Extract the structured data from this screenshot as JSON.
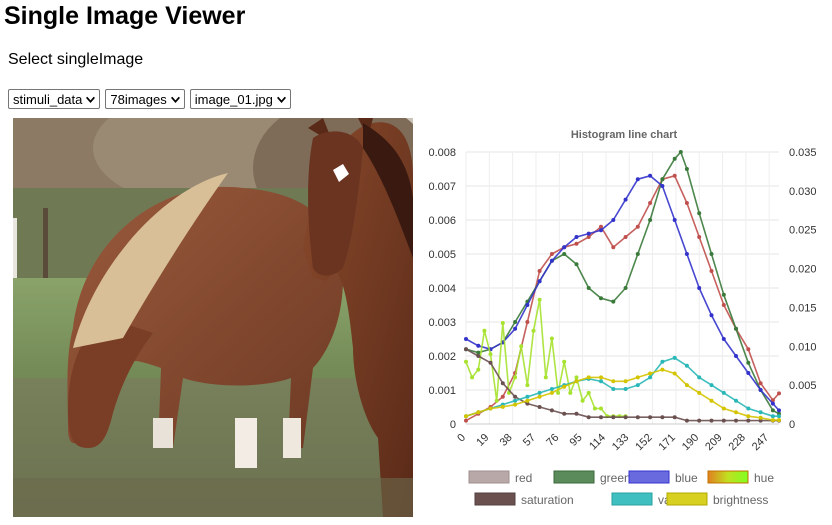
{
  "page": {
    "title": "Single Image Viewer",
    "prompt": "Select singleImage"
  },
  "selects": [
    {
      "name": "dataset-select",
      "value": "stimuli_data"
    },
    {
      "name": "image-count-select",
      "value": "78images"
    },
    {
      "name": "image-file-select",
      "value": "image_01.jpg"
    }
  ],
  "photo": {
    "subject": "two horses grazing on a pasture"
  },
  "chart_data": {
    "type": "line",
    "title": "Histogram line chart",
    "xlabel": "",
    "ylabel": "",
    "x_ticks": [
      "0",
      "19",
      "38",
      "57",
      "76",
      "95",
      "114",
      "133",
      "152",
      "171",
      "190",
      "209",
      "228",
      "247"
    ],
    "ylim_left": [
      0,
      0.008
    ],
    "yticks_left": [
      "0",
      "0.001",
      "0.002",
      "0.003",
      "0.004",
      "0.005",
      "0.006",
      "0.007",
      "0.008"
    ],
    "ylim_right": [
      0,
      0.035
    ],
    "yticks_right": [
      "0",
      "0.005",
      "0.010",
      "0.015",
      "0.020",
      "0.025",
      "0.030",
      "0.035"
    ],
    "grid": true,
    "legend_position": "bottom",
    "series": [
      {
        "name": "red",
        "axis": "left",
        "color": "#c0504d",
        "x": [
          0,
          10,
          20,
          30,
          40,
          50,
          60,
          70,
          80,
          90,
          100,
          110,
          120,
          130,
          140,
          150,
          160,
          170,
          180,
          190,
          200,
          210,
          220,
          230,
          240,
          250,
          255
        ],
        "values": [
          0.0001,
          0.0003,
          0.0005,
          0.0008,
          0.0015,
          0.003,
          0.0045,
          0.005,
          0.0052,
          0.0053,
          0.0055,
          0.0058,
          0.0052,
          0.0055,
          0.0058,
          0.0065,
          0.0072,
          0.0073,
          0.0065,
          0.0055,
          0.0045,
          0.0035,
          0.0028,
          0.0022,
          0.0012,
          0.0007,
          0.0009
        ]
      },
      {
        "name": "green",
        "axis": "left",
        "color": "#3a7a3a",
        "x": [
          0,
          10,
          20,
          30,
          40,
          50,
          60,
          70,
          80,
          90,
          100,
          110,
          120,
          130,
          140,
          150,
          160,
          170,
          175,
          180,
          190,
          200,
          210,
          220,
          230,
          240,
          250,
          255
        ],
        "values": [
          0.0022,
          0.0021,
          0.0022,
          0.0024,
          0.003,
          0.0036,
          0.0042,
          0.0048,
          0.005,
          0.0047,
          0.004,
          0.0037,
          0.0036,
          0.004,
          0.005,
          0.006,
          0.0072,
          0.0078,
          0.008,
          0.0075,
          0.0062,
          0.005,
          0.0038,
          0.0028,
          0.0018,
          0.001,
          0.0004,
          0.0003
        ]
      },
      {
        "name": "blue",
        "axis": "left",
        "color": "#3333cc",
        "x": [
          0,
          10,
          20,
          30,
          40,
          50,
          60,
          70,
          80,
          90,
          100,
          110,
          120,
          130,
          140,
          150,
          160,
          170,
          180,
          190,
          200,
          210,
          220,
          230,
          240,
          250,
          255
        ],
        "values": [
          0.0025,
          0.0023,
          0.0022,
          0.0024,
          0.0028,
          0.0035,
          0.0042,
          0.0048,
          0.0052,
          0.0055,
          0.0056,
          0.0057,
          0.006,
          0.0066,
          0.0072,
          0.0073,
          0.007,
          0.006,
          0.005,
          0.004,
          0.0032,
          0.0025,
          0.002,
          0.0015,
          0.001,
          0.0006,
          0.0004
        ]
      },
      {
        "name": "hue",
        "axis": "right",
        "color": "#a6e22e",
        "x": [
          0,
          5,
          10,
          15,
          20,
          25,
          30,
          35,
          40,
          45,
          50,
          55,
          60,
          65,
          70,
          75,
          80,
          85,
          90,
          95,
          100,
          105,
          110,
          115,
          120,
          125,
          130
        ],
        "values": [
          0.008,
          0.006,
          0.007,
          0.012,
          0.009,
          0.003,
          0.013,
          0.004,
          0.006,
          0.01,
          0.005,
          0.012,
          0.016,
          0.006,
          0.011,
          0.004,
          0.008,
          0.004,
          0.006,
          0.003,
          0.004,
          0.002,
          0.002,
          0.001,
          0.001,
          0.001,
          0.001
        ]
      },
      {
        "name": "saturation",
        "axis": "left",
        "color": "#6b5050",
        "x": [
          0,
          10,
          20,
          30,
          40,
          50,
          60,
          70,
          80,
          90,
          100,
          110,
          120,
          130,
          140,
          150,
          160,
          170,
          180,
          190,
          200,
          210,
          220,
          230,
          240,
          250,
          255
        ],
        "values": [
          0.0022,
          0.002,
          0.0018,
          0.0012,
          0.0008,
          0.0006,
          0.0005,
          0.0004,
          0.0003,
          0.0003,
          0.0002,
          0.0002,
          0.0002,
          0.0002,
          0.0002,
          0.0002,
          0.0002,
          0.0002,
          0.0001,
          0.0001,
          0.0001,
          0.0001,
          0.0001,
          0.0001,
          0.0001,
          0.0001,
          0.0001
        ]
      },
      {
        "name": "value",
        "axis": "right",
        "color": "#2ab7b7",
        "x": [
          0,
          10,
          20,
          30,
          40,
          50,
          60,
          70,
          80,
          90,
          100,
          110,
          120,
          130,
          140,
          150,
          160,
          170,
          180,
          190,
          200,
          210,
          220,
          230,
          240,
          250,
          255
        ],
        "values": [
          0.001,
          0.0015,
          0.002,
          0.0025,
          0.003,
          0.0035,
          0.004,
          0.0045,
          0.005,
          0.0055,
          0.0058,
          0.0055,
          0.0045,
          0.0045,
          0.005,
          0.006,
          0.008,
          0.0085,
          0.0075,
          0.006,
          0.005,
          0.004,
          0.003,
          0.002,
          0.0015,
          0.001,
          0.001
        ]
      },
      {
        "name": "brightness",
        "axis": "right",
        "color": "#d4c400",
        "x": [
          0,
          10,
          20,
          30,
          40,
          50,
          60,
          70,
          80,
          90,
          100,
          110,
          120,
          130,
          140,
          150,
          160,
          170,
          180,
          190,
          200,
          210,
          220,
          230,
          240,
          250,
          255
        ],
        "values": [
          0.001,
          0.0015,
          0.002,
          0.0022,
          0.0025,
          0.003,
          0.0035,
          0.004,
          0.0048,
          0.0055,
          0.006,
          0.006,
          0.0055,
          0.0055,
          0.006,
          0.0065,
          0.007,
          0.0065,
          0.005,
          0.004,
          0.003,
          0.002,
          0.0015,
          0.001,
          0.0008,
          0.0005,
          0.0005
        ]
      }
    ],
    "legend": [
      {
        "label": "red",
        "fill": "#b8a8a8",
        "stroke": "#a09090"
      },
      {
        "label": "green",
        "fill": "#5b8a5b",
        "stroke": "#3a6a3a"
      },
      {
        "label": "blue",
        "fill": "#6a6adf",
        "stroke": "#3333cc"
      },
      {
        "label": "hue",
        "fill": "gradient",
        "stroke": "#c07000"
      },
      {
        "label": "saturation",
        "fill": "#6b5050",
        "stroke": "#504040"
      },
      {
        "label": "value",
        "fill": "#3fbfbf",
        "stroke": "#2aa0a0"
      },
      {
        "label": "brightness",
        "fill": "#d8d020",
        "stroke": "#b0a800"
      }
    ]
  }
}
